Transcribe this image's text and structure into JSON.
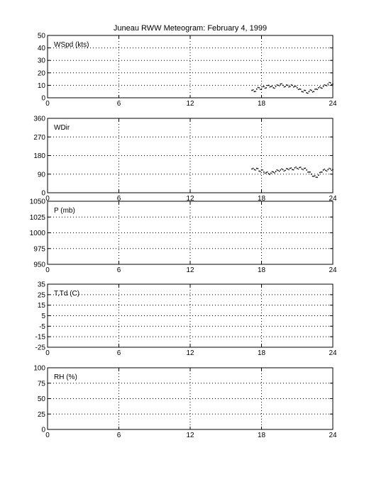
{
  "title": "Juneau RWW Meteogram:  February  4, 1999",
  "chart_data": [
    {
      "type": "scatter",
      "name": "wind-speed",
      "label": "WSpd (kts)",
      "ylim": [
        0,
        50
      ],
      "yticks": [
        0,
        10,
        20,
        30,
        40,
        50
      ],
      "xlim": [
        0,
        24
      ],
      "xticks": [
        0,
        6,
        12,
        18,
        24
      ],
      "grid": true,
      "series": [
        {
          "x": [
            17.2,
            17.4,
            17.6,
            17.8,
            18.0,
            18.2,
            18.4,
            18.6,
            18.8,
            19.0,
            19.2,
            19.4,
            19.6,
            19.8,
            20.0,
            20.2,
            20.4,
            20.6,
            20.8,
            21.0,
            21.2,
            21.4,
            21.6,
            21.8,
            22.0,
            22.2,
            22.4,
            22.6,
            22.8,
            23.0,
            23.2,
            23.4,
            23.6,
            23.8,
            24.0
          ],
          "y": [
            6,
            5,
            7,
            8,
            7,
            9,
            8,
            10,
            9,
            8,
            9,
            10,
            11,
            10,
            9,
            10,
            9,
            10,
            9,
            8,
            7,
            5,
            6,
            4,
            5,
            6,
            5,
            7,
            8,
            8,
            9,
            10,
            11,
            12,
            11
          ]
        }
      ]
    },
    {
      "type": "scatter",
      "name": "wind-direction",
      "label": "WDir",
      "ylim": [
        0,
        360
      ],
      "yticks": [
        0,
        90,
        180,
        270,
        360
      ],
      "xlim": [
        0,
        24
      ],
      "xticks": [
        0,
        6,
        12,
        18,
        24
      ],
      "grid": true,
      "series": [
        {
          "x": [
            17.2,
            17.4,
            17.6,
            17.8,
            18.0,
            18.2,
            18.4,
            18.6,
            18.8,
            19.0,
            19.2,
            19.4,
            19.6,
            19.8,
            20.0,
            20.2,
            20.4,
            20.6,
            20.8,
            21.0,
            21.2,
            21.4,
            21.6,
            21.8,
            22.0,
            22.2,
            22.4,
            22.6,
            22.8,
            23.0,
            23.2,
            23.4,
            23.6,
            23.8,
            24.0
          ],
          "y": [
            115,
            112,
            118,
            105,
            110,
            100,
            98,
            92,
            95,
            100,
            103,
            108,
            110,
            112,
            108,
            115,
            118,
            112,
            120,
            118,
            122,
            115,
            118,
            110,
            100,
            90,
            80,
            75,
            85,
            100,
            110,
            108,
            112,
            115,
            112
          ]
        }
      ]
    },
    {
      "type": "scatter",
      "name": "pressure",
      "label": "P (mb)",
      "ylim": [
        950,
        1050
      ],
      "yticks": [
        950,
        975,
        1000,
        1025,
        1050
      ],
      "xlim": [
        0,
        24
      ],
      "xticks": [
        0,
        6,
        12,
        18,
        24
      ],
      "grid": true,
      "series": []
    },
    {
      "type": "scatter",
      "name": "temperature",
      "label": "T,Td (C)",
      "ylim": [
        -25,
        35
      ],
      "yticks": [
        -25,
        -15,
        -5,
        5,
        15,
        25,
        35
      ],
      "xlim": [
        0,
        24
      ],
      "xticks": [
        0,
        6,
        12,
        18,
        24
      ],
      "grid": true,
      "series": []
    },
    {
      "type": "scatter",
      "name": "relative-humidity",
      "label": "RH (%)",
      "ylim": [
        0,
        100
      ],
      "yticks": [
        0,
        25,
        50,
        75,
        100
      ],
      "xlim": [
        0,
        24
      ],
      "xticks": [
        0,
        6,
        12,
        18,
        24
      ],
      "grid": true,
      "series": []
    }
  ]
}
